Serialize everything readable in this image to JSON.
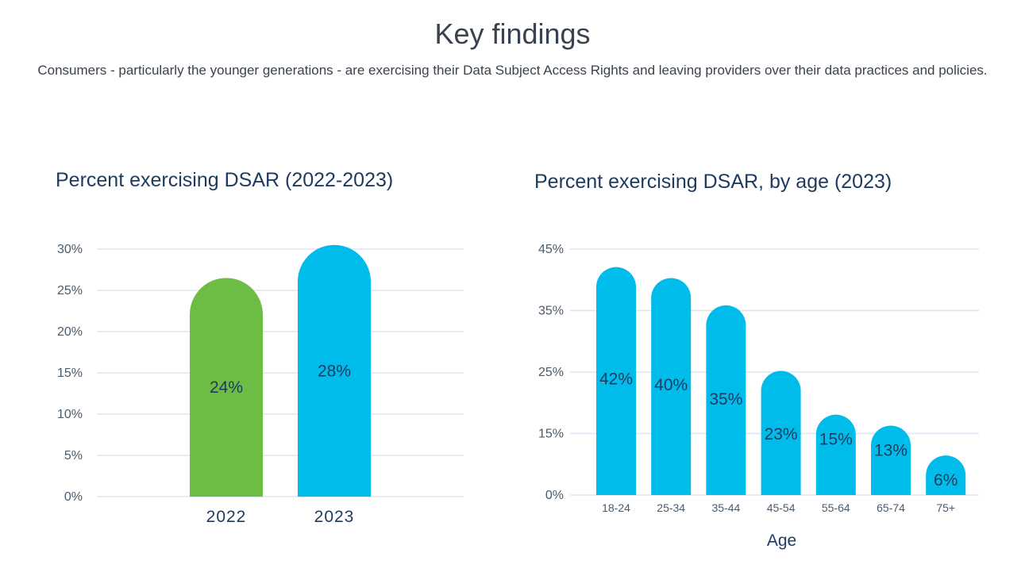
{
  "page": {
    "title": "Key findings",
    "subtitle": "Consumers - particularly the younger generations - are exercising their Data Subject Access Rights and leaving providers over their data practices and policies."
  },
  "colors": {
    "green": "#6dbd45",
    "blue": "#00bceb",
    "grid": "#dbe6f3",
    "text_dark": "#1d3a5f"
  },
  "chart_data": [
    {
      "type": "bar",
      "title": "Percent exercising DSAR (2022-2023)",
      "xlabel": "",
      "ylabel": "",
      "categories": [
        "2022",
        "2023"
      ],
      "values": [
        24,
        28
      ],
      "data_labels": [
        "24%",
        "28%"
      ],
      "bar_colors": [
        "#6dbd45",
        "#00bceb"
      ],
      "yticks": [
        "0%",
        "5%",
        "10%",
        "15%",
        "20%",
        "25%",
        "30%"
      ],
      "ylim": [
        0,
        30
      ],
      "grid": true,
      "legend": "none"
    },
    {
      "type": "bar",
      "title": "Percent exercising DSAR, by age (2023)",
      "xlabel": "Age",
      "ylabel": "",
      "categories": [
        "18-24",
        "25-34",
        "35-44",
        "45-54",
        "55-64",
        "65-74",
        "75+"
      ],
      "values": [
        42,
        40,
        35,
        23,
        15,
        13,
        6
      ],
      "data_labels": [
        "42%",
        "40%",
        "35%",
        "23%",
        "15%",
        "13%",
        "6%"
      ],
      "bar_colors": [
        "#00bceb"
      ],
      "yticks": [
        "0%",
        "15%",
        "25%",
        "35%",
        "45%"
      ],
      "ylim": [
        0,
        45
      ],
      "grid": true,
      "legend": "none"
    }
  ]
}
